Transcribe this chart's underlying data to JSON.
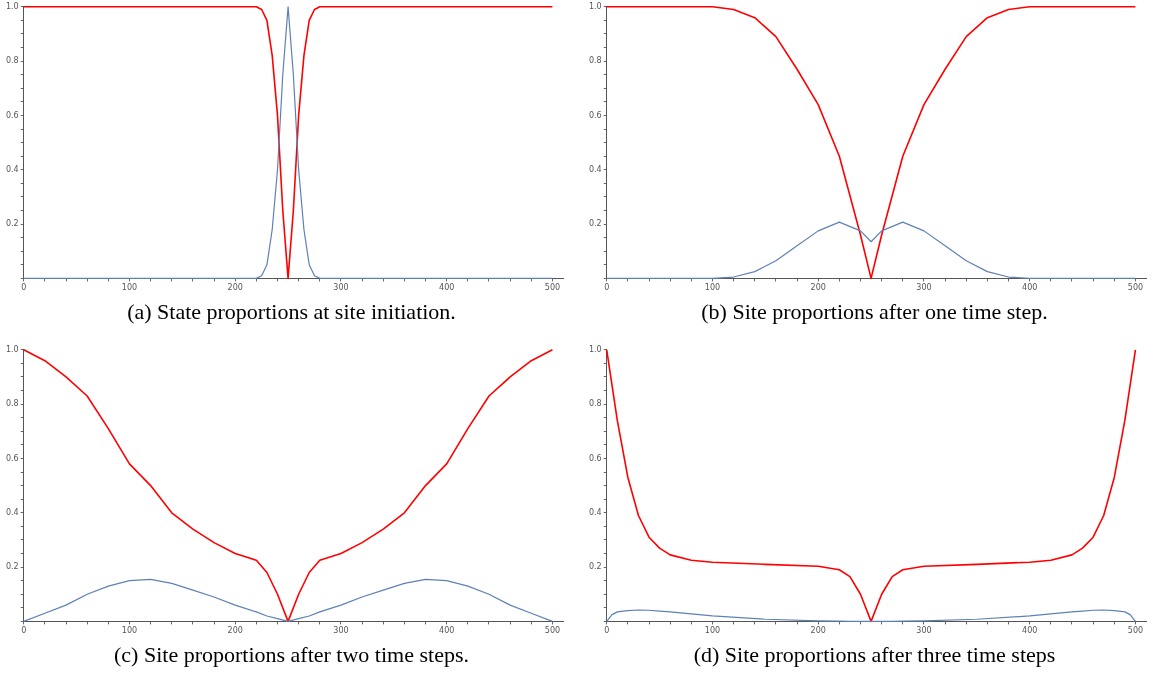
{
  "chart_data": [
    {
      "type": "line",
      "title": "(a) State proportions at site initiation.",
      "x": [
        0,
        220,
        225,
        230,
        235,
        240,
        245,
        250,
        255,
        260,
        265,
        270,
        275,
        280,
        500
      ],
      "marker": "none",
      "legend": false,
      "grid": false,
      "xlim": [
        0,
        510
      ],
      "ylim": [
        0,
        1
      ],
      "series": [
        {
          "color": "#ff0000",
          "values": [
            1,
            1,
            0.99,
            0.95,
            0.82,
            0.6,
            0.25,
            0,
            0.25,
            0.6,
            0.82,
            0.95,
            0.99,
            1,
            1
          ]
        },
        {
          "color": "#5e81b5",
          "values": [
            0,
            0,
            0.01,
            0.05,
            0.18,
            0.4,
            0.75,
            1,
            0.75,
            0.4,
            0.18,
            0.05,
            0.01,
            0,
            0
          ]
        }
      ],
      "xticks": [
        0,
        {
          "value": 20,
          "label": null
        },
        {
          "value": 40,
          "label": null
        },
        {
          "value": 60,
          "label": null
        },
        {
          "value": 80,
          "label": null
        },
        100,
        {
          "value": 120,
          "label": null
        },
        {
          "value": 140,
          "label": null
        },
        {
          "value": 160,
          "label": null
        },
        {
          "value": 180,
          "label": null
        },
        200,
        {
          "value": 220,
          "label": null
        },
        {
          "value": 240,
          "label": null
        },
        {
          "value": 260,
          "label": null
        },
        {
          "value": 280,
          "label": null
        },
        300,
        {
          "value": 320,
          "label": null
        },
        {
          "value": 340,
          "label": null
        },
        {
          "value": 360,
          "label": null
        },
        {
          "value": 380,
          "label": null
        },
        400,
        {
          "value": 420,
          "label": null
        },
        {
          "value": 440,
          "label": null
        },
        {
          "value": 460,
          "label": null
        },
        {
          "value": 480,
          "label": null
        },
        500
      ],
      "yticks": [
        {
          "value": 0,
          "label": null
        },
        {
          "value": 0.05,
          "label": null
        },
        {
          "value": 0.1,
          "label": null
        },
        {
          "value": 0.15,
          "label": null
        },
        {
          "value": 0.2,
          "label": "0.2"
        },
        {
          "value": 0.25,
          "label": null
        },
        {
          "value": 0.3,
          "label": null
        },
        {
          "value": 0.35,
          "label": null
        },
        {
          "value": 0.4,
          "label": "0.4"
        },
        {
          "value": 0.45,
          "label": null
        },
        {
          "value": 0.5,
          "label": null
        },
        {
          "value": 0.55,
          "label": null
        },
        {
          "value": 0.6,
          "label": "0.6"
        },
        {
          "value": 0.65,
          "label": null
        },
        {
          "value": 0.7,
          "label": null
        },
        {
          "value": 0.75,
          "label": null
        },
        {
          "value": 0.8,
          "label": "0.8"
        },
        {
          "value": 0.85,
          "label": null
        },
        {
          "value": 0.9,
          "label": null
        },
        {
          "value": 0.95,
          "label": null
        },
        {
          "value": 1,
          "label": "1.0"
        }
      ]
    },
    {
      "type": "line",
      "title": "(b) Site proportions after one time step.",
      "x": [
        0,
        100,
        120,
        140,
        160,
        180,
        200,
        220,
        240,
        250,
        260,
        280,
        300,
        320,
        340,
        360,
        380,
        400,
        500
      ],
      "marker": "none",
      "legend": false,
      "grid": false,
      "xlim": [
        0,
        510
      ],
      "ylim": [
        0,
        1
      ],
      "series": [
        {
          "color": "#ff0000",
          "values": [
            1,
            1,
            0.99,
            0.96,
            0.89,
            0.77,
            0.64,
            0.45,
            0.16,
            0,
            0.16,
            0.45,
            0.64,
            0.77,
            0.89,
            0.96,
            0.99,
            1,
            1
          ]
        },
        {
          "color": "#5e81b5",
          "values": [
            0,
            0,
            0.005,
            0.025,
            0.065,
            0.12,
            0.175,
            0.207,
            0.175,
            0.135,
            0.175,
            0.207,
            0.175,
            0.12,
            0.065,
            0.025,
            0.005,
            0,
            0
          ]
        }
      ],
      "xticks": [
        0,
        {
          "value": 20,
          "label": null
        },
        {
          "value": 40,
          "label": null
        },
        {
          "value": 60,
          "label": null
        },
        {
          "value": 80,
          "label": null
        },
        100,
        {
          "value": 120,
          "label": null
        },
        {
          "value": 140,
          "label": null
        },
        {
          "value": 160,
          "label": null
        },
        {
          "value": 180,
          "label": null
        },
        200,
        {
          "value": 220,
          "label": null
        },
        {
          "value": 240,
          "label": null
        },
        {
          "value": 260,
          "label": null
        },
        {
          "value": 280,
          "label": null
        },
        300,
        {
          "value": 320,
          "label": null
        },
        {
          "value": 340,
          "label": null
        },
        {
          "value": 360,
          "label": null
        },
        {
          "value": 380,
          "label": null
        },
        400,
        {
          "value": 420,
          "label": null
        },
        {
          "value": 440,
          "label": null
        },
        {
          "value": 460,
          "label": null
        },
        {
          "value": 480,
          "label": null
        },
        500
      ],
      "yticks": [
        {
          "value": 0,
          "label": null
        },
        {
          "value": 0.05,
          "label": null
        },
        {
          "value": 0.1,
          "label": null
        },
        {
          "value": 0.15,
          "label": null
        },
        {
          "value": 0.2,
          "label": "0.2"
        },
        {
          "value": 0.25,
          "label": null
        },
        {
          "value": 0.3,
          "label": null
        },
        {
          "value": 0.35,
          "label": null
        },
        {
          "value": 0.4,
          "label": "0.4"
        },
        {
          "value": 0.45,
          "label": null
        },
        {
          "value": 0.5,
          "label": null
        },
        {
          "value": 0.55,
          "label": null
        },
        {
          "value": 0.6,
          "label": "0.6"
        },
        {
          "value": 0.65,
          "label": null
        },
        {
          "value": 0.7,
          "label": null
        },
        {
          "value": 0.75,
          "label": null
        },
        {
          "value": 0.8,
          "label": "0.8"
        },
        {
          "value": 0.85,
          "label": null
        },
        {
          "value": 0.9,
          "label": null
        },
        {
          "value": 0.95,
          "label": null
        },
        {
          "value": 1,
          "label": "1.0"
        }
      ]
    },
    {
      "type": "line",
      "title": "(c) Site proportions after two time steps.",
      "x": [
        0,
        20,
        40,
        60,
        80,
        100,
        120,
        140,
        160,
        180,
        200,
        220,
        230,
        240,
        250,
        260,
        270,
        280,
        300,
        320,
        340,
        360,
        380,
        400,
        420,
        440,
        460,
        480,
        500
      ],
      "marker": "none",
      "legend": false,
      "grid": false,
      "xlim": [
        0,
        510
      ],
      "ylim": [
        0,
        1
      ],
      "series": [
        {
          "color": "#ff0000",
          "values": [
            1,
            0.96,
            0.9,
            0.83,
            0.71,
            0.58,
            0.5,
            0.4,
            0.34,
            0.29,
            0.25,
            0.225,
            0.18,
            0.1,
            0,
            0.1,
            0.18,
            0.225,
            0.25,
            0.29,
            0.34,
            0.4,
            0.5,
            0.58,
            0.71,
            0.83,
            0.9,
            0.96,
            1
          ]
        },
        {
          "color": "#5e81b5",
          "values": [
            0,
            0.03,
            0.06,
            0.1,
            0.13,
            0.15,
            0.155,
            0.14,
            0.115,
            0.09,
            0.06,
            0.035,
            0.02,
            0.01,
            0,
            0.01,
            0.02,
            0.035,
            0.06,
            0.09,
            0.115,
            0.14,
            0.155,
            0.15,
            0.13,
            0.1,
            0.06,
            0.03,
            0
          ]
        }
      ],
      "xticks": [
        0,
        {
          "value": 20,
          "label": null
        },
        {
          "value": 40,
          "label": null
        },
        {
          "value": 60,
          "label": null
        },
        {
          "value": 80,
          "label": null
        },
        100,
        {
          "value": 120,
          "label": null
        },
        {
          "value": 140,
          "label": null
        },
        {
          "value": 160,
          "label": null
        },
        {
          "value": 180,
          "label": null
        },
        200,
        {
          "value": 220,
          "label": null
        },
        {
          "value": 240,
          "label": null
        },
        {
          "value": 260,
          "label": null
        },
        {
          "value": 280,
          "label": null
        },
        300,
        {
          "value": 320,
          "label": null
        },
        {
          "value": 340,
          "label": null
        },
        {
          "value": 360,
          "label": null
        },
        {
          "value": 380,
          "label": null
        },
        400,
        {
          "value": 420,
          "label": null
        },
        {
          "value": 440,
          "label": null
        },
        {
          "value": 460,
          "label": null
        },
        {
          "value": 480,
          "label": null
        },
        500
      ],
      "yticks": [
        {
          "value": 0,
          "label": null
        },
        {
          "value": 0.05,
          "label": null
        },
        {
          "value": 0.1,
          "label": null
        },
        {
          "value": 0.15,
          "label": null
        },
        {
          "value": 0.2,
          "label": "0.2"
        },
        {
          "value": 0.25,
          "label": null
        },
        {
          "value": 0.3,
          "label": null
        },
        {
          "value": 0.35,
          "label": null
        },
        {
          "value": 0.4,
          "label": "0.4"
        },
        {
          "value": 0.45,
          "label": null
        },
        {
          "value": 0.5,
          "label": null
        },
        {
          "value": 0.55,
          "label": null
        },
        {
          "value": 0.6,
          "label": "0.6"
        },
        {
          "value": 0.65,
          "label": null
        },
        {
          "value": 0.7,
          "label": null
        },
        {
          "value": 0.75,
          "label": null
        },
        {
          "value": 0.8,
          "label": "0.8"
        },
        {
          "value": 0.85,
          "label": null
        },
        {
          "value": 0.9,
          "label": null
        },
        {
          "value": 0.95,
          "label": null
        },
        {
          "value": 1,
          "label": "1.0"
        }
      ]
    },
    {
      "type": "line",
      "title": "(d) Site proportions after three time steps",
      "x": [
        0,
        5,
        10,
        20,
        30,
        40,
        50,
        60,
        80,
        100,
        150,
        200,
        220,
        230,
        240,
        250,
        260,
        270,
        280,
        300,
        350,
        400,
        420,
        440,
        450,
        460,
        470,
        480,
        490,
        495,
        500
      ],
      "marker": "none",
      "legend": false,
      "grid": false,
      "xlim": [
        0,
        510
      ],
      "ylim": [
        0,
        1
      ],
      "series": [
        {
          "color": "#ff0000",
          "values": [
            1,
            0.87,
            0.74,
            0.53,
            0.39,
            0.31,
            0.27,
            0.245,
            0.225,
            0.218,
            0.21,
            0.203,
            0.19,
            0.165,
            0.1,
            0,
            0.1,
            0.165,
            0.19,
            0.203,
            0.21,
            0.218,
            0.225,
            0.245,
            0.27,
            0.31,
            0.39,
            0.53,
            0.74,
            0.87,
            1
          ]
        },
        {
          "color": "#5e81b5",
          "values": [
            0,
            0.025,
            0.035,
            0.04,
            0.042,
            0.041,
            0.038,
            0.035,
            0.028,
            0.02,
            0.008,
            0.002,
            0.001,
            0,
            0,
            0,
            0,
            0,
            0.001,
            0.002,
            0.008,
            0.02,
            0.028,
            0.035,
            0.038,
            0.041,
            0.042,
            0.04,
            0.035,
            0.025,
            0
          ]
        }
      ],
      "xticks": [
        0,
        {
          "value": 20,
          "label": null
        },
        {
          "value": 40,
          "label": null
        },
        {
          "value": 60,
          "label": null
        },
        {
          "value": 80,
          "label": null
        },
        100,
        {
          "value": 120,
          "label": null
        },
        {
          "value": 140,
          "label": null
        },
        {
          "value": 160,
          "label": null
        },
        {
          "value": 180,
          "label": null
        },
        200,
        {
          "value": 220,
          "label": null
        },
        {
          "value": 240,
          "label": null
        },
        {
          "value": 260,
          "label": null
        },
        {
          "value": 280,
          "label": null
        },
        300,
        {
          "value": 320,
          "label": null
        },
        {
          "value": 340,
          "label": null
        },
        {
          "value": 360,
          "label": null
        },
        {
          "value": 380,
          "label": null
        },
        400,
        {
          "value": 420,
          "label": null
        },
        {
          "value": 440,
          "label": null
        },
        {
          "value": 460,
          "label": null
        },
        {
          "value": 480,
          "label": null
        },
        500
      ],
      "yticks": [
        {
          "value": 0,
          "label": null
        },
        {
          "value": 0.05,
          "label": null
        },
        {
          "value": 0.1,
          "label": null
        },
        {
          "value": 0.15,
          "label": null
        },
        {
          "value": 0.2,
          "label": "0.2"
        },
        {
          "value": 0.25,
          "label": null
        },
        {
          "value": 0.3,
          "label": null
        },
        {
          "value": 0.35,
          "label": null
        },
        {
          "value": 0.4,
          "label": "0.4"
        },
        {
          "value": 0.45,
          "label": null
        },
        {
          "value": 0.5,
          "label": null
        },
        {
          "value": 0.55,
          "label": null
        },
        {
          "value": 0.6,
          "label": "0.6"
        },
        {
          "value": 0.65,
          "label": null
        },
        {
          "value": 0.7,
          "label": null
        },
        {
          "value": 0.75,
          "label": null
        },
        {
          "value": 0.8,
          "label": "0.8"
        },
        {
          "value": 0.85,
          "label": null
        },
        {
          "value": 0.9,
          "label": null
        },
        {
          "value": 0.95,
          "label": null
        },
        {
          "value": 1,
          "label": "1.0"
        }
      ]
    }
  ]
}
